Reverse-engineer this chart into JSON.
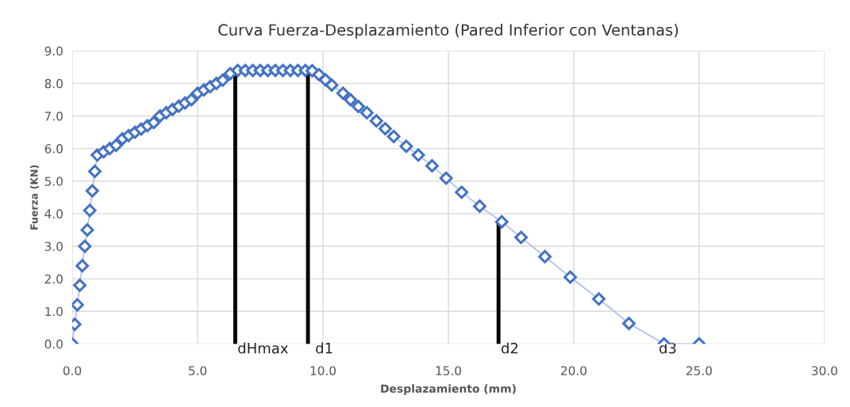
{
  "chart_data": {
    "type": "line",
    "title": "Curva Fuerza-Desplazamiento (Pared Inferior con Ventanas)",
    "xlabel": "Desplazamiento (mm)",
    "ylabel": "Fuerza (KN)",
    "xlim": [
      0,
      30
    ],
    "ylim": [
      0,
      9
    ],
    "xticks": [
      {
        "value": 0,
        "label": "0.0"
      },
      {
        "value": 5,
        "label": "5.0"
      },
      {
        "value": 10,
        "label": "10.0"
      },
      {
        "value": 15,
        "label": "15.0"
      },
      {
        "value": 20,
        "label": "20.0"
      },
      {
        "value": 25,
        "label": "25.0"
      },
      {
        "value": 30,
        "label": "30.0"
      }
    ],
    "yticks": [
      {
        "value": 0,
        "label": "0.0"
      },
      {
        "value": 1,
        "label": "1.0"
      },
      {
        "value": 2,
        "label": "2.0"
      },
      {
        "value": 3,
        "label": "3.0"
      },
      {
        "value": 4,
        "label": "4.0"
      },
      {
        "value": 5,
        "label": "5.0"
      },
      {
        "value": 6,
        "label": "6.0"
      },
      {
        "value": 7,
        "label": "7.0"
      },
      {
        "value": 8,
        "label": "8.0"
      },
      {
        "value": 9,
        "label": "9.0"
      }
    ],
    "grid": true,
    "marker": "diamond",
    "legend": false,
    "series": [
      {
        "color": "#4472c4",
        "x": [
          0,
          0.1,
          0.2,
          0.3,
          0.4,
          0.5,
          0.6,
          0.7,
          0.8,
          0.9,
          1.0,
          1.25,
          1.5,
          1.75,
          2.0,
          2.25,
          2.5,
          2.75,
          3.0,
          3.25,
          3.5,
          3.75,
          4.0,
          4.25,
          4.5,
          4.75,
          5.0,
          5.25,
          5.5,
          5.75,
          6.0,
          6.3,
          6.6,
          6.9,
          7.2,
          7.5,
          7.8,
          8.1,
          8.4,
          8.7,
          9.0,
          9.3,
          9.57,
          9.84,
          10.1,
          10.35,
          10.8,
          11.1,
          11.41,
          11.75,
          12.13,
          12.48,
          12.82,
          13.32,
          13.8,
          14.35,
          14.91,
          15.53,
          16.25,
          17.13,
          17.9,
          18.85,
          19.86,
          21.0,
          22.2,
          23.6,
          25.0
        ],
        "values": [
          0,
          0.6,
          1.2,
          1.8,
          2.4,
          3.0,
          3.5,
          4.1,
          4.7,
          5.3,
          5.8,
          5.9,
          6.0,
          6.1,
          6.3,
          6.4,
          6.5,
          6.6,
          6.7,
          6.8,
          7.0,
          7.1,
          7.2,
          7.3,
          7.4,
          7.5,
          7.7,
          7.8,
          7.9,
          8.0,
          8.1,
          8.3,
          8.4,
          8.4,
          8.4,
          8.4,
          8.4,
          8.4,
          8.4,
          8.4,
          8.4,
          8.4,
          8.39,
          8.27,
          8.11,
          7.95,
          7.7,
          7.5,
          7.29,
          7.1,
          6.85,
          6.61,
          6.37,
          6.07,
          5.8,
          5.47,
          5.09,
          4.66,
          4.23,
          3.75,
          3.27,
          2.68,
          2.05,
          1.38,
          0.63,
          0,
          0
        ]
      },
      {
        "type": "line",
        "marker": "none",
        "color": "#000000",
        "x": [
          6.5,
          6.5
        ],
        "values": [
          0,
          8.3
        ]
      },
      {
        "type": "line",
        "marker": "none",
        "color": "#000000",
        "x": [
          9.4,
          9.4
        ],
        "values": [
          0,
          8.3
        ]
      },
      {
        "type": "line",
        "marker": "none",
        "color": "#000000",
        "x": [
          17.0,
          17.0
        ],
        "values": [
          0,
          3.7
        ]
      }
    ],
    "annotations": [
      {
        "text": "dHmax",
        "x": 6.5,
        "y": 0
      },
      {
        "text": "d1",
        "x": 9.6,
        "y": 0
      },
      {
        "text": "d2",
        "x": 17.0,
        "y": 0
      },
      {
        "text": "d3",
        "x": 23.3,
        "y": 0
      }
    ]
  }
}
